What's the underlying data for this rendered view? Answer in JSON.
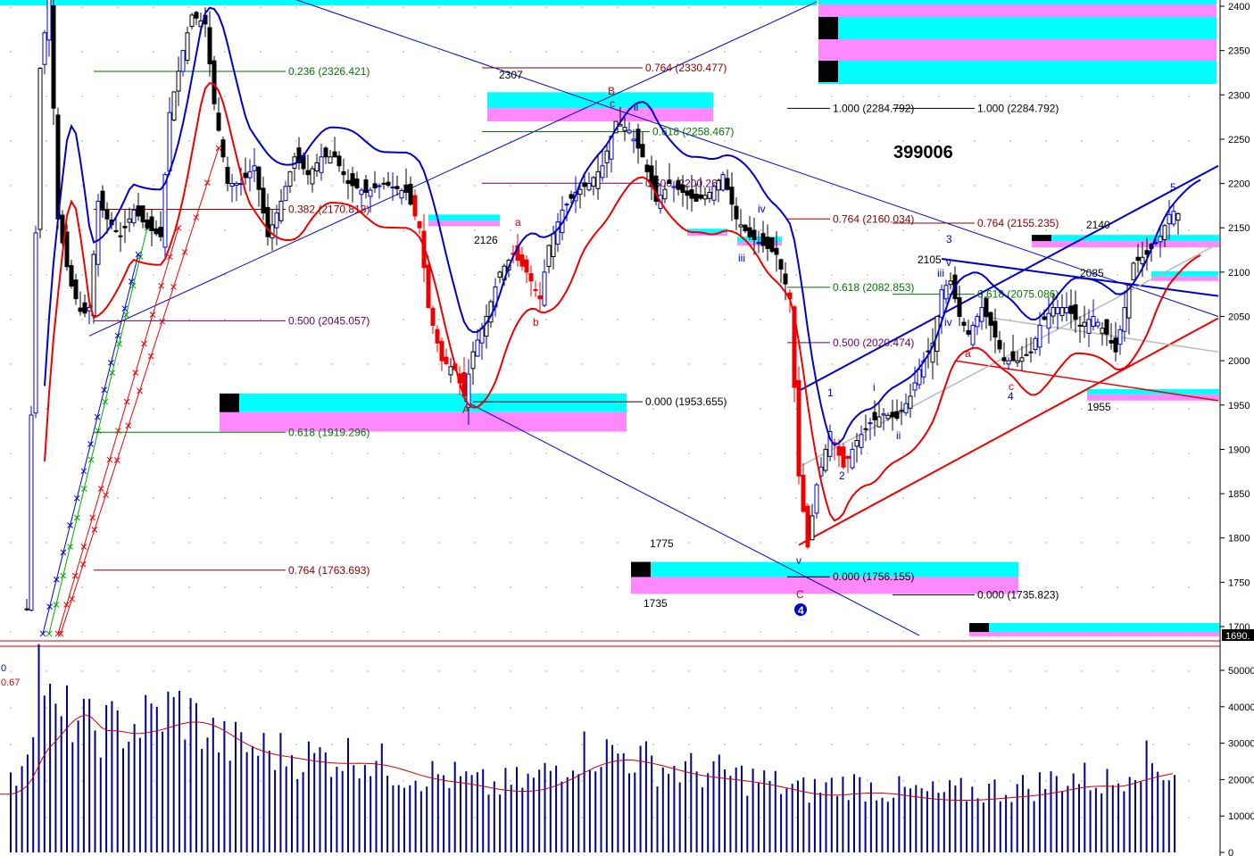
{
  "chart_data": {
    "type": "candlestick",
    "code": "399006",
    "price_axis": {
      "ticks": [
        2400,
        2350,
        2300,
        2250,
        2200,
        2150,
        2100,
        2050,
        2000,
        1950,
        1900,
        1850,
        1800,
        1750,
        1700
      ],
      "ylim": [
        1690,
        2405
      ],
      "last_label": "1690."
    },
    "volume_axis": {
      "ticks": [
        50000,
        40000,
        30000,
        20000,
        10000,
        0
      ],
      "ticks_labels": [
        "50000",
        "40000",
        "30000",
        "20000",
        "10000",
        "0"
      ],
      "ylim": [
        0,
        58000
      ],
      "legend": [
        "0",
        "0.67"
      ]
    },
    "colors": {
      "up": "#0000cc",
      "down": "#ee0000",
      "neutral": "#000000",
      "cyan": "#00ffff",
      "magenta": "#ff88ff",
      "ma_blue": "#0000cc",
      "ma_red": "#ee0000",
      "fib_green": "#007700",
      "fib_brown": "#880000",
      "fib_purple": "#660066"
    },
    "fib_levels": [
      {
        "label": "0.236 (2326.421)",
        "value": 2326.421,
        "color": "#007700"
      },
      {
        "label": "0.382 (2170.818)",
        "value": 2170.818,
        "color": "#880000"
      },
      {
        "label": "0.500 (2045.057)",
        "value": 2045.057,
        "color": "#660066"
      },
      {
        "label": "0.618 (1919.296)",
        "value": 1919.296,
        "color": "#007700"
      },
      {
        "label": "0.764 (1763.693)",
        "value": 1763.693,
        "color": "#880000"
      },
      {
        "label": "0.764 (2330.477)",
        "value": 2330.477,
        "color": "#880000"
      },
      {
        "label": "0.618 (2258.467)",
        "value": 2258.467,
        "color": "#007700"
      },
      {
        "label": "0.500 (2200.267)",
        "value": 2200.267,
        "color": "#660066"
      },
      {
        "label": "0.000 (1953.655)",
        "value": 1953.655,
        "color": "#000000"
      },
      {
        "label": "1.000 (2284.792)",
        "value": 2284.792,
        "color": "#000000"
      },
      {
        "label": "1.000 (2284.792)",
        "value": 2284.792,
        "color": "#000000"
      },
      {
        "label": "0.764 (2160.034)",
        "value": 2160.034,
        "color": "#880000"
      },
      {
        "label": "0.764 (2155.235)",
        "value": 2155.235,
        "color": "#880000"
      },
      {
        "label": "0.618 (2082.853)",
        "value": 2082.853,
        "color": "#007700"
      },
      {
        "label": "0.618 (2075.086)",
        "value": 2075.086,
        "color": "#007700"
      },
      {
        "label": "0.500 (2020.474)",
        "value": 2020.474,
        "color": "#660066"
      },
      {
        "label": "0.000 (1756.155)",
        "value": 1756.155,
        "color": "#000000"
      },
      {
        "label": "0.000 (1735.823)",
        "value": 1735.823,
        "color": "#000000"
      }
    ],
    "price_labels": [
      "2307",
      "2126",
      "1775",
      "1735",
      "2105",
      "2140",
      "2085",
      "1955"
    ],
    "wave_labels": [
      "B",
      "c",
      "ii",
      "a",
      "b",
      "A",
      "iv",
      "iii",
      "v",
      "C",
      "4",
      "1",
      "i",
      "2",
      "ii",
      "iii",
      "v",
      "iv",
      "3",
      "a",
      "c",
      "4",
      "5"
    ]
  }
}
